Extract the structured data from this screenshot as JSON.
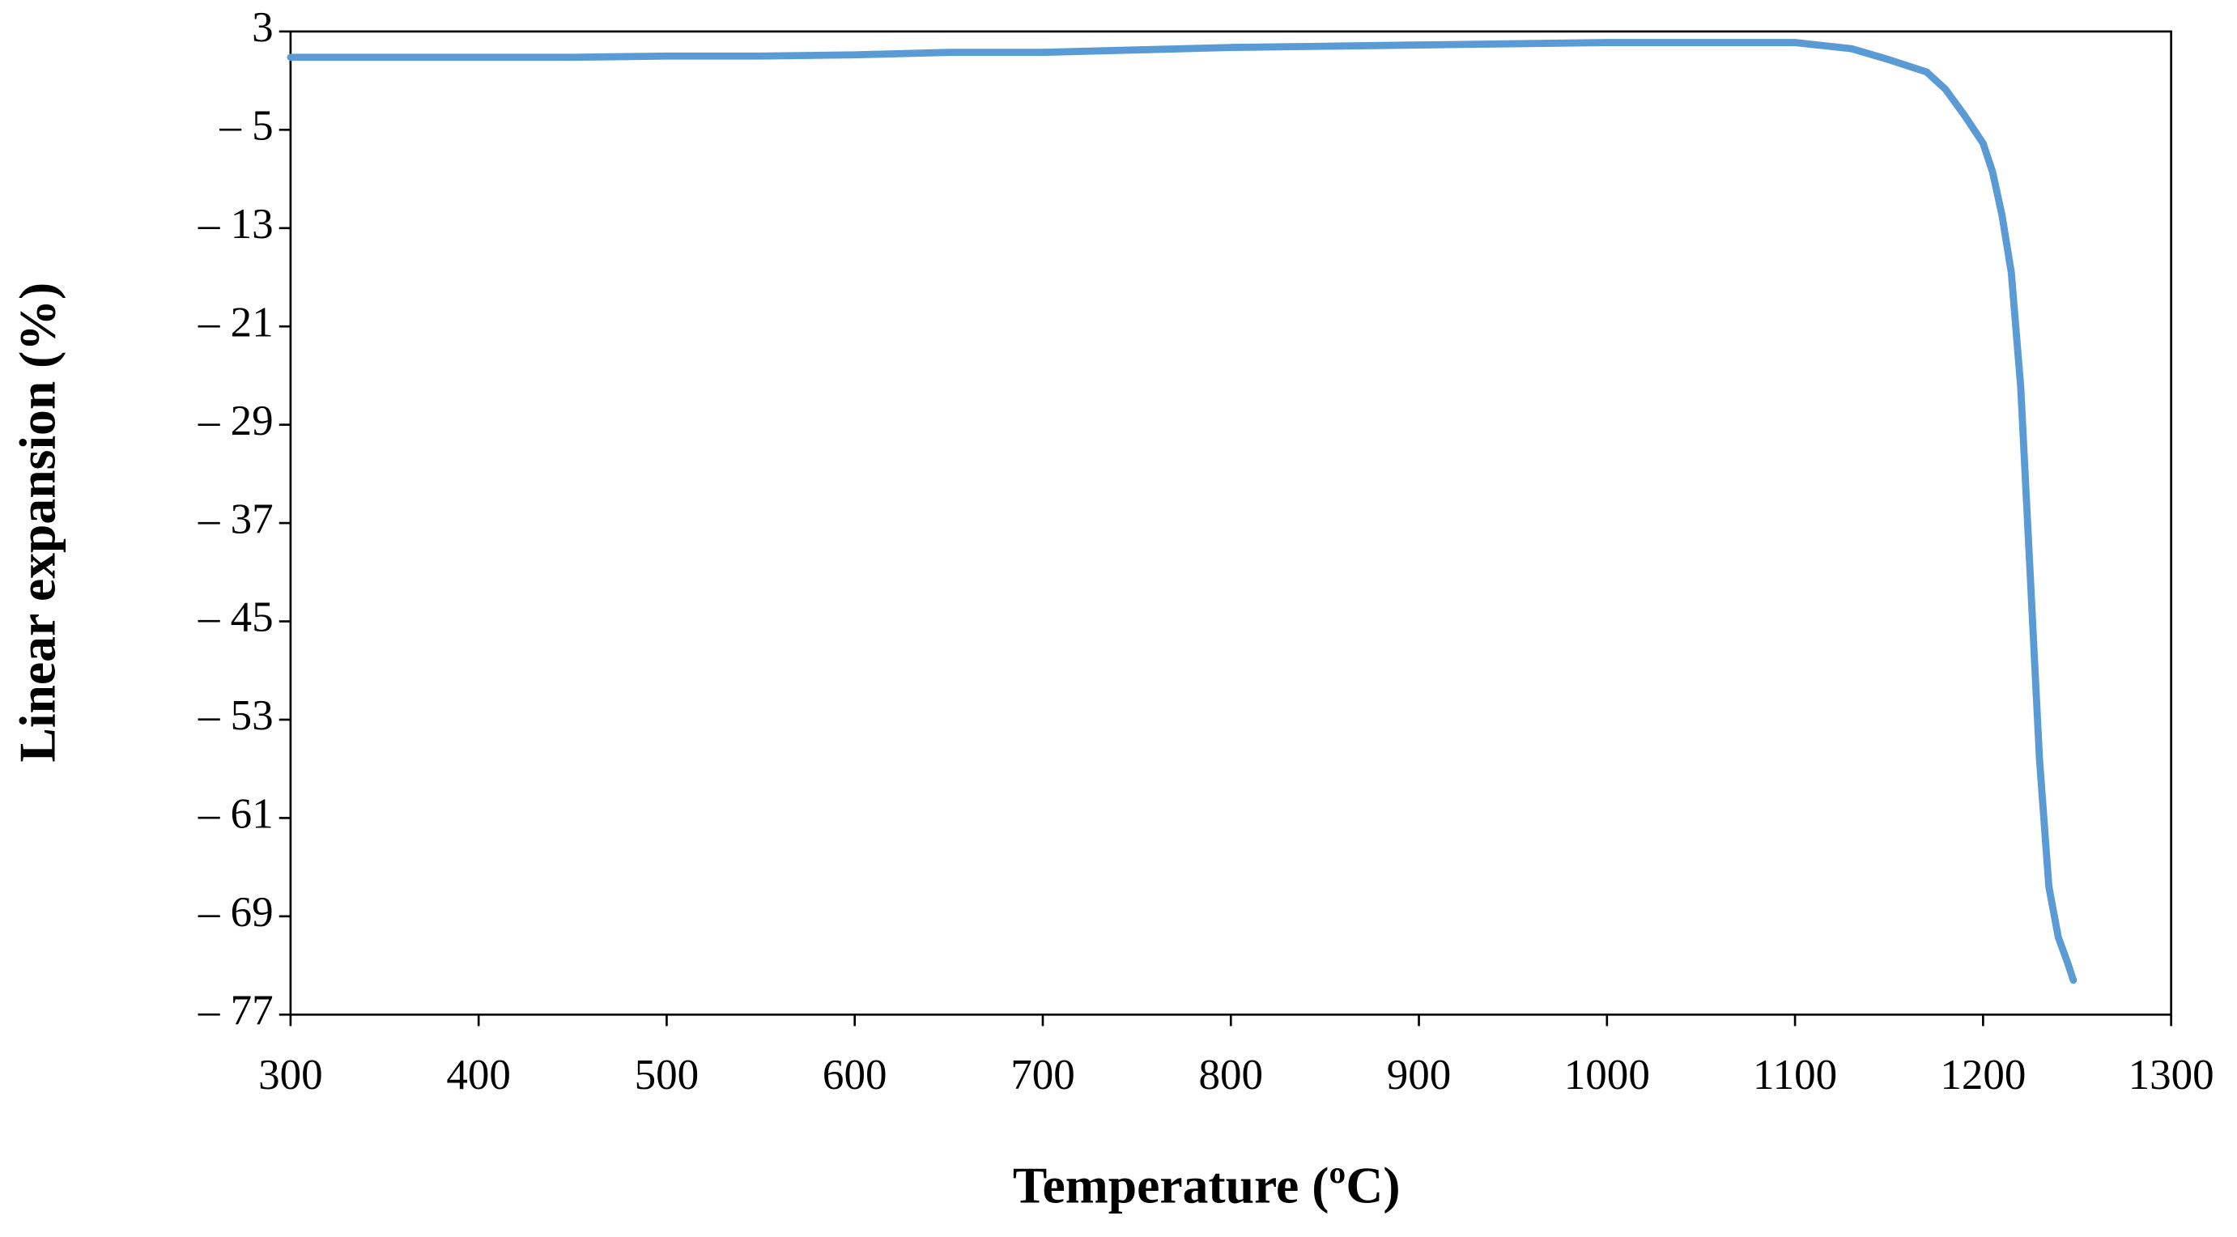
{
  "chart_data": {
    "type": "line",
    "xlabel": "Temperature (ºC)",
    "ylabel": "Linear expansion (%)",
    "x": [
      300,
      350,
      400,
      450,
      500,
      550,
      600,
      650,
      700,
      750,
      800,
      850,
      900,
      950,
      1000,
      1050,
      1100,
      1130,
      1150,
      1170,
      1180,
      1190,
      1200,
      1205,
      1210,
      1215,
      1220,
      1225,
      1230,
      1235,
      1240,
      1245,
      1248
    ],
    "values": [
      0.9,
      0.9,
      0.9,
      0.9,
      1.0,
      1.0,
      1.1,
      1.3,
      1.3,
      1.5,
      1.7,
      1.8,
      1.9,
      2.0,
      2.1,
      2.1,
      2.1,
      1.6,
      0.7,
      -0.3,
      -1.7,
      -3.8,
      -6.1,
      -8.4,
      -11.9,
      -16.6,
      -25.9,
      -41,
      -56.2,
      -66.6,
      -70.7,
      -72.8,
      -74.2
    ],
    "color": "#5b9bd5",
    "xlim": [
      300,
      1300
    ],
    "xticks": [
      300,
      400,
      500,
      600,
      700,
      800,
      900,
      1000,
      1100,
      1200,
      1300
    ],
    "ylim": [
      -77,
      3
    ],
    "yticks": [
      3,
      {
        "value": -5,
        "label": "– 5"
      },
      {
        "value": -13,
        "label": "– 13"
      },
      {
        "value": -21,
        "label": "– 21"
      },
      {
        "value": -29,
        "label": "– 29"
      },
      {
        "value": -37,
        "label": "– 37"
      },
      {
        "value": -45,
        "label": "– 45"
      },
      {
        "value": -53,
        "label": "– 53"
      },
      {
        "value": -61,
        "label": "– 61"
      },
      {
        "value": -69,
        "label": "– 69"
      },
      {
        "value": -77,
        "label": "– 77"
      }
    ],
    "grid": false
  }
}
